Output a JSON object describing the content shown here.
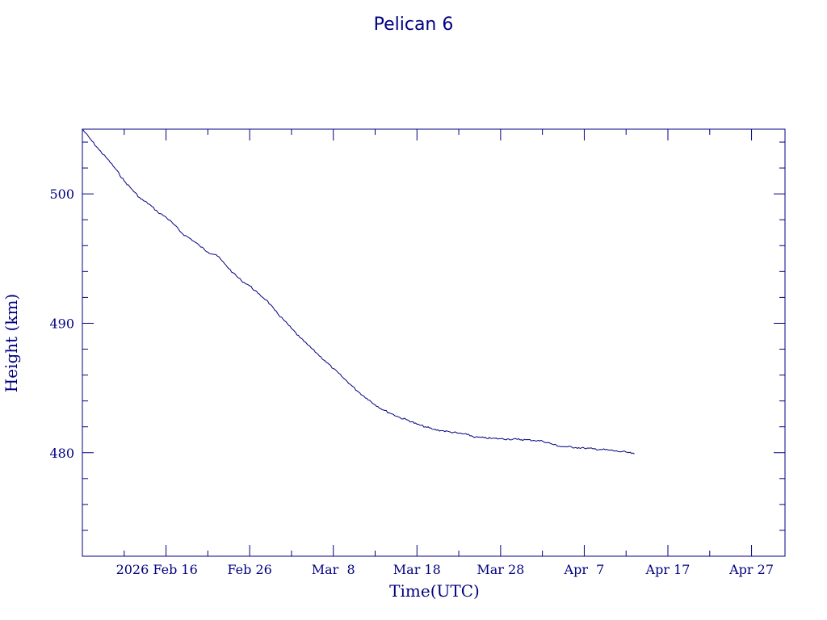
{
  "chart_data": {
    "type": "line",
    "title": "Pelican 6",
    "xlabel": "Time(UTC)",
    "ylabel": "Height (km)",
    "x_tick_labels": [
      "2026 Feb 16",
      "Feb 26",
      "Mar  8",
      "Mar 18",
      "Mar 28",
      "Apr  7",
      "Apr 17",
      "Apr 27"
    ],
    "x_tick_dates": [
      "2026-02-16",
      "2026-02-26",
      "2026-03-08",
      "2026-03-18",
      "2026-03-28",
      "2026-04-07",
      "2026-04-17",
      "2026-04-27"
    ],
    "xlim": [
      "2026-02-06",
      "2026-05-01"
    ],
    "y_tick_labels": [
      "480",
      "490",
      "500"
    ],
    "y_ticks": [
      480,
      490,
      500
    ],
    "ylim": [
      472,
      505
    ],
    "grid": false,
    "color": "#000080",
    "series": [
      {
        "x": [
          "2026-02-06",
          "2026-02-07",
          "2026-02-08",
          "2026-02-09",
          "2026-02-10",
          "2026-02-11",
          "2026-02-12",
          "2026-02-13",
          "2026-02-14",
          "2026-02-15",
          "2026-02-16",
          "2026-02-17",
          "2026-02-18",
          "2026-02-19",
          "2026-02-20",
          "2026-02-21",
          "2026-02-22",
          "2026-02-23",
          "2026-02-24",
          "2026-02-25",
          "2026-02-26",
          "2026-02-27",
          "2026-02-28",
          "2026-03-01",
          "2026-03-02",
          "2026-03-03",
          "2026-03-04",
          "2026-03-05",
          "2026-03-06",
          "2026-03-07",
          "2026-03-08",
          "2026-03-09",
          "2026-03-10",
          "2026-03-11",
          "2026-03-12",
          "2026-03-13",
          "2026-03-14",
          "2026-03-15",
          "2026-03-16",
          "2026-03-17",
          "2026-03-18",
          "2026-03-19",
          "2026-03-20",
          "2026-03-21",
          "2026-03-22",
          "2026-03-23",
          "2026-03-24",
          "2026-03-25",
          "2026-03-26",
          "2026-03-27",
          "2026-03-28",
          "2026-03-29",
          "2026-03-30",
          "2026-03-31",
          "2026-04-01",
          "2026-04-02",
          "2026-04-03",
          "2026-04-04",
          "2026-04-05",
          "2026-04-06",
          "2026-04-07",
          "2026-04-08",
          "2026-04-09",
          "2026-04-10",
          "2026-04-11",
          "2026-04-12",
          "2026-04-13"
        ],
        "y": [
          505.0,
          504.2,
          503.4,
          502.7,
          501.9,
          501.0,
          500.3,
          499.6,
          499.2,
          498.6,
          498.2,
          497.6,
          496.9,
          496.5,
          496.0,
          495.5,
          495.3,
          494.6,
          493.9,
          493.3,
          492.9,
          492.3,
          491.8,
          491.0,
          490.3,
          489.6,
          488.9,
          488.3,
          487.7,
          487.1,
          486.5,
          485.9,
          485.3,
          484.7,
          484.2,
          483.7,
          483.3,
          483.0,
          482.7,
          482.5,
          482.2,
          482.0,
          481.8,
          481.7,
          481.6,
          481.5,
          481.4,
          481.2,
          481.15,
          481.1,
          481.08,
          481.05,
          481.03,
          481.0,
          480.95,
          480.9,
          480.7,
          480.5,
          480.45,
          480.4,
          480.35,
          480.3,
          480.25,
          480.2,
          480.1,
          480.05,
          479.9
        ]
      }
    ]
  }
}
